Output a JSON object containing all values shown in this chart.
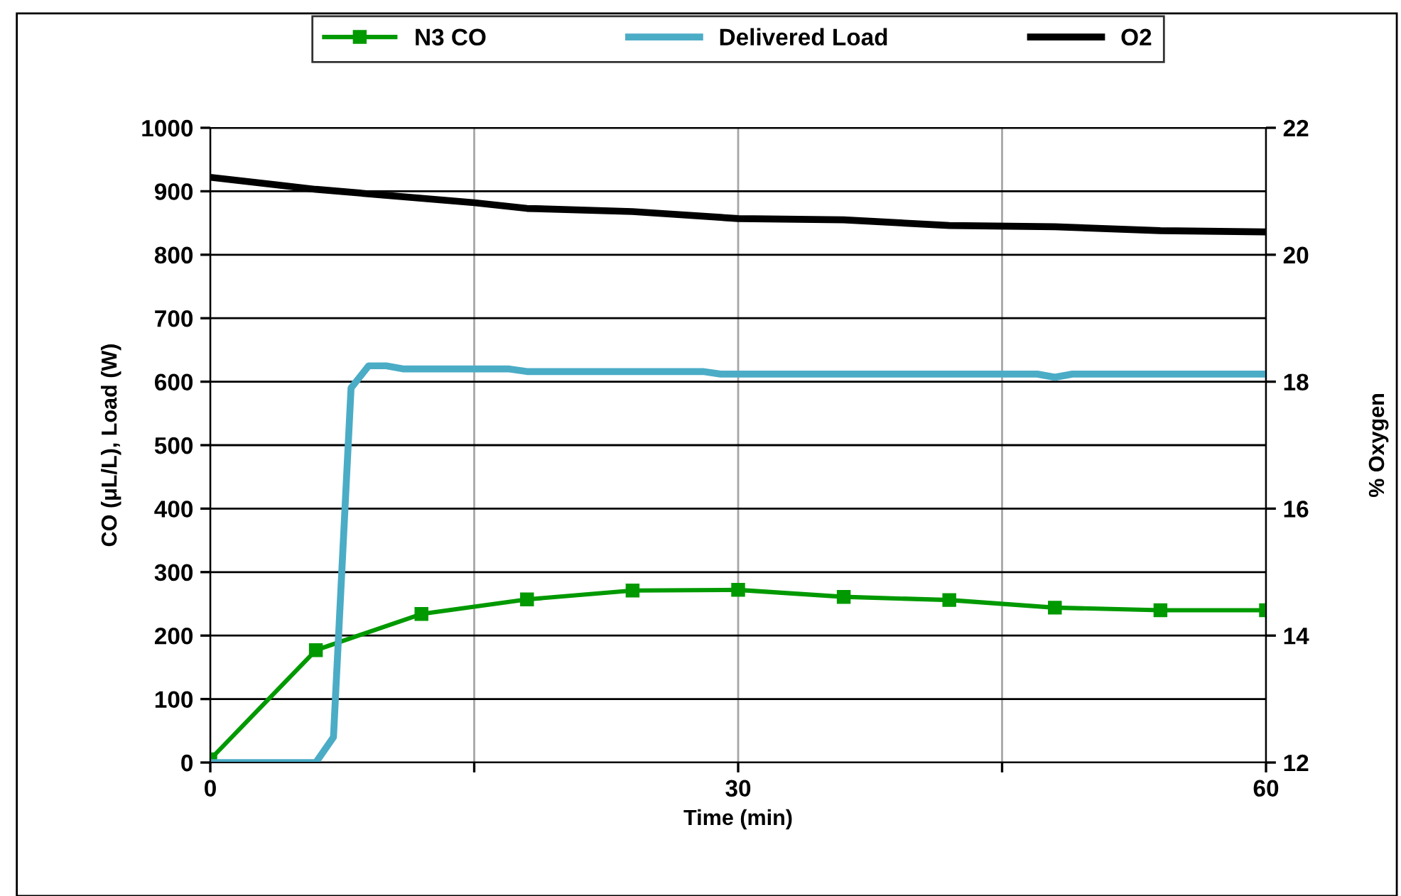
{
  "chart_data": {
    "type": "line",
    "xlabel": "Time (min)",
    "ylabel": "CO (μL/L), Load (W)",
    "y2label": "% Oxygen",
    "xlim": [
      0,
      60
    ],
    "xticks": [
      0,
      {
        "value": 15,
        "label": null
      },
      30,
      {
        "value": 45,
        "label": null
      },
      60
    ],
    "ylim": [
      0,
      1000
    ],
    "yticks": [
      0,
      100,
      200,
      300,
      400,
      500,
      600,
      700,
      800,
      900,
      1000
    ],
    "y2lim": [
      12,
      22
    ],
    "y2ticks": [
      12,
      14,
      16,
      18,
      20,
      22
    ],
    "grid": true,
    "legend": "top",
    "series": [
      {
        "name": "N3 CO",
        "color": "#009900",
        "marker": "square",
        "x": [
          0,
          6,
          12,
          18,
          24,
          30,
          36,
          42,
          48,
          54,
          60
        ],
        "values": [
          5,
          177,
          234,
          257,
          271,
          272,
          261,
          256,
          244,
          240,
          240
        ]
      },
      {
        "name": "Delivered Load",
        "color": "#4bacc6",
        "marker": "none",
        "x": [
          0,
          6,
          7,
          8,
          9,
          10,
          11,
          17,
          18,
          28,
          29,
          47,
          48,
          49,
          60
        ],
        "values": [
          0,
          0,
          40,
          590,
          625,
          625,
          620,
          620,
          616,
          616,
          612,
          612,
          607,
          612,
          612
        ]
      },
      {
        "name": "O2",
        "color": "#000000",
        "marker": "none",
        "axis": "y2",
        "x": [
          0,
          6,
          15,
          18,
          24,
          30,
          36,
          42,
          48,
          54,
          60
        ],
        "values": [
          21.22,
          21.03,
          20.82,
          20.73,
          20.68,
          20.57,
          20.55,
          20.46,
          20.44,
          20.38,
          20.36
        ]
      }
    ]
  }
}
